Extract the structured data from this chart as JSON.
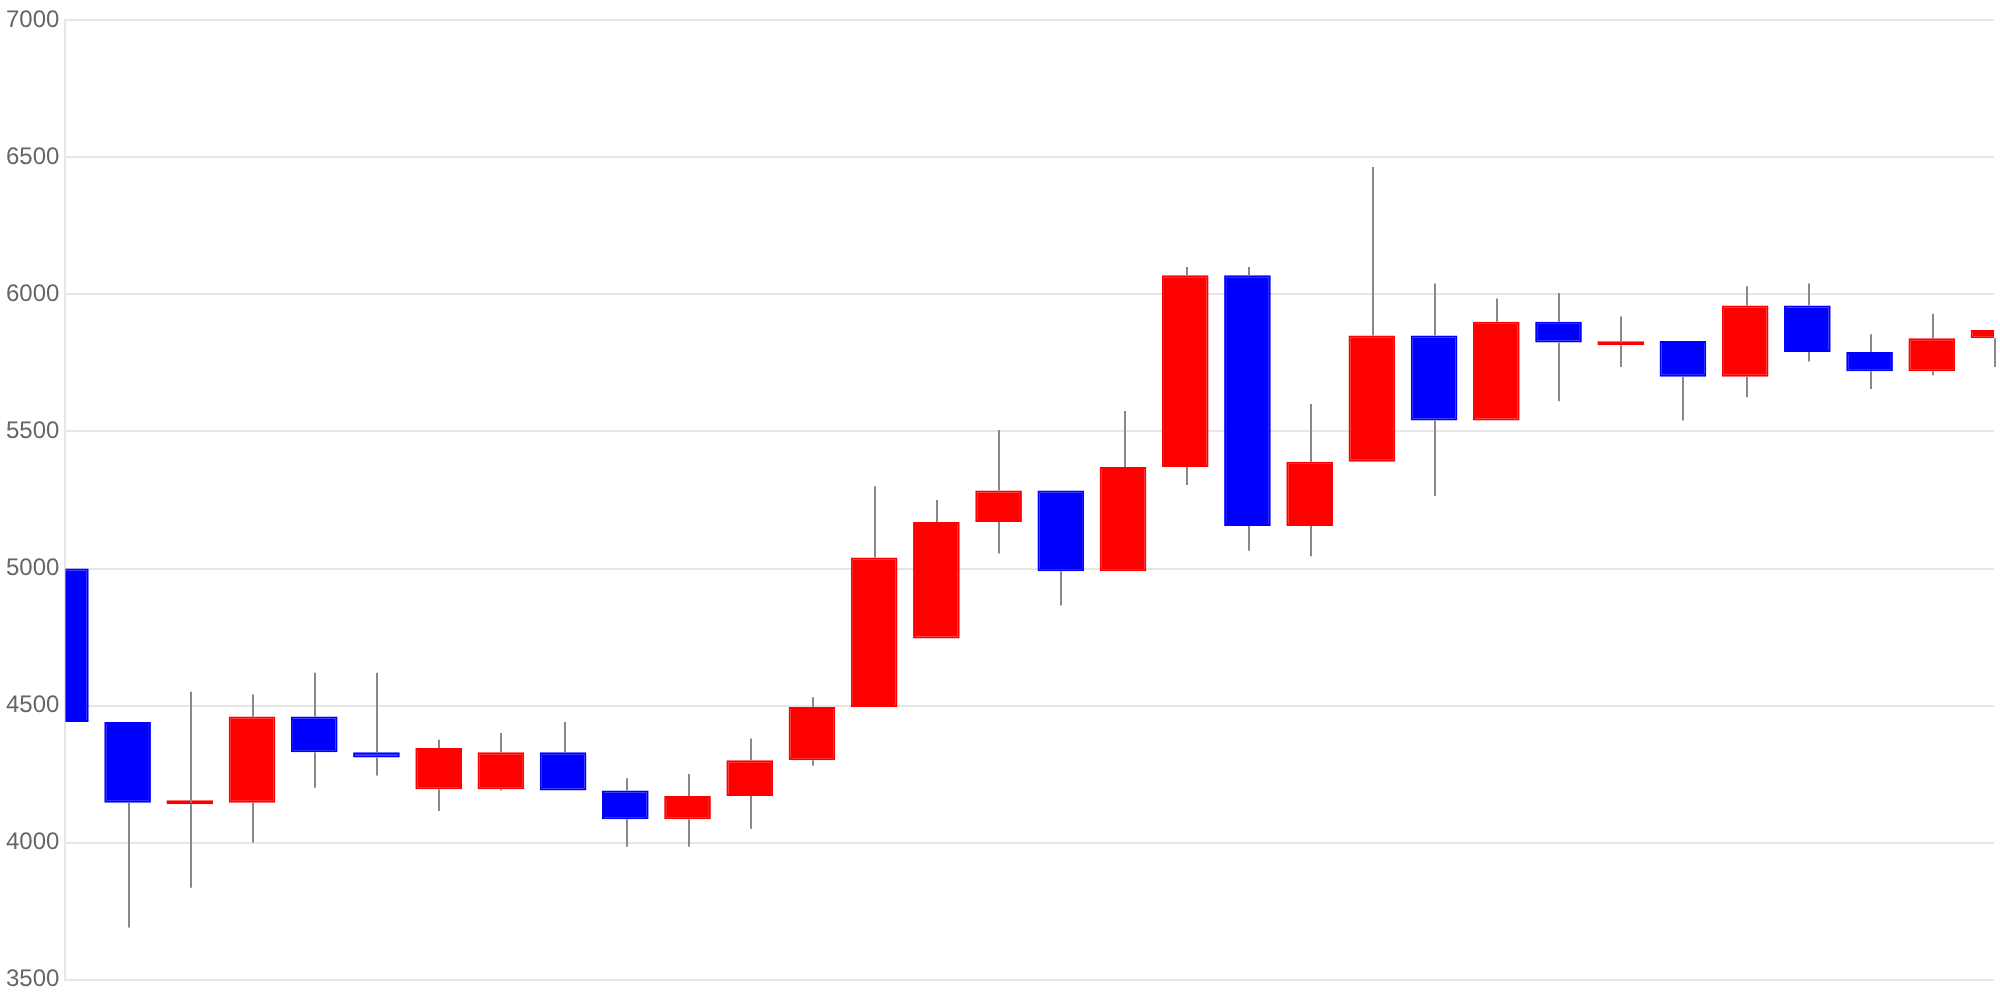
{
  "chart_data": {
    "type": "candlestick",
    "categories": [
      null,
      null,
      null,
      null,
      null,
      null,
      null,
      null,
      null,
      null,
      null,
      null,
      null,
      null,
      null,
      null,
      null,
      null,
      null,
      null,
      null,
      null,
      null,
      null,
      null,
      null,
      null,
      null,
      null,
      null,
      null,
      null
    ],
    "ohlc": [
      [
        5000,
        5000,
        4440,
        4440
      ],
      [
        4440,
        4440,
        3690,
        4145
      ],
      [
        4140,
        4550,
        3835,
        4145
      ],
      [
        4145,
        4540,
        4000,
        4460
      ],
      [
        4460,
        4620,
        4200,
        4330
      ],
      [
        4330,
        4620,
        4245,
        4310
      ],
      [
        4195,
        4375,
        4115,
        4345
      ],
      [
        4195,
        4400,
        4190,
        4330
      ],
      [
        4330,
        4440,
        4190,
        4190
      ],
      [
        4190,
        4235,
        3985,
        4085
      ],
      [
        4085,
        4250,
        3985,
        4170
      ],
      [
        4170,
        4380,
        4050,
        4300
      ],
      [
        4300,
        4530,
        4280,
        4495
      ],
      [
        4495,
        5300,
        4495,
        5040
      ],
      [
        4745,
        5250,
        4745,
        5170
      ],
      [
        5170,
        5505,
        5055,
        5285
      ],
      [
        5285,
        5285,
        4865,
        4990
      ],
      [
        4990,
        5575,
        4990,
        5370
      ],
      [
        5370,
        6100,
        5305,
        6070
      ],
      [
        6070,
        6100,
        5065,
        5155
      ],
      [
        5155,
        5600,
        5045,
        5390
      ],
      [
        5390,
        6465,
        5390,
        5850
      ],
      [
        5850,
        6040,
        5265,
        5540
      ],
      [
        5540,
        5985,
        5540,
        5900
      ],
      [
        5900,
        6005,
        5610,
        5825
      ],
      [
        5815,
        5920,
        5735,
        5825
      ],
      [
        5830,
        5830,
        5540,
        5700
      ],
      [
        5700,
        6030,
        5625,
        5960
      ],
      [
        5960,
        6040,
        5755,
        5790
      ],
      [
        5790,
        5855,
        5655,
        5720
      ],
      [
        5720,
        5930,
        5705,
        5840
      ],
      [
        5840,
        5870,
        5735,
        5870
      ]
    ],
    "colors": [
      "#0000ff",
      "#0000ff",
      "#ff0000",
      "#ff0000",
      "#0000ff",
      "#0000ff",
      "#ff0000",
      "#ff0000",
      "#0000ff",
      "#0000ff",
      "#ff0000",
      "#ff0000",
      "#ff0000",
      "#ff0000",
      "#ff0000",
      "#ff0000",
      "#0000ff",
      "#ff0000",
      "#ff0000",
      "#0000ff",
      "#ff0000",
      "#ff0000",
      "#0000ff",
      "#ff0000",
      "#0000ff",
      "#ff0000",
      "#0000ff",
      "#ff0000",
      "#0000ff",
      "#0000ff",
      "#ff0000",
      "#ff0000"
    ],
    "ylim": [
      3500,
      7000
    ],
    "yticks": [
      3500,
      4000,
      4500,
      5000,
      5500,
      6000,
      6500,
      7000
    ],
    "grid": "y",
    "tick_labels": "y"
  }
}
